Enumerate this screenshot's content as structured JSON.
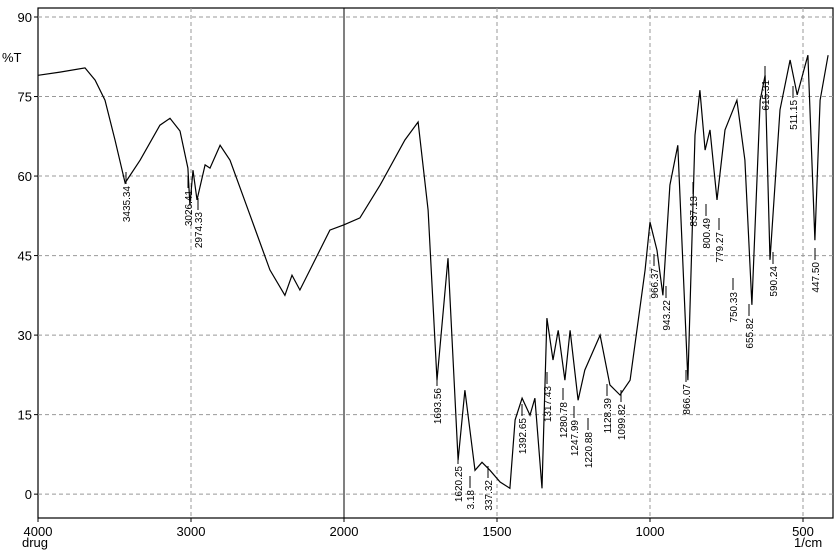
{
  "chart_data": {
    "type": "line",
    "y_label": "%T",
    "x_label": "1/cm",
    "sample": "drug",
    "xlim": [
      4000,
      400
    ],
    "ylim": [
      -4.5,
      91.7
    ],
    "xticks": [
      4000,
      3000,
      2000,
      1500,
      1000,
      500
    ],
    "yticks": [
      0,
      15,
      30,
      45,
      60,
      75,
      90
    ],
    "grid": true,
    "series": [
      {
        "color": "#000000",
        "x": [
          4000,
          3856,
          3693,
          3627,
          3562,
          3497,
          3431,
          3333,
          3203,
          3137,
          3072,
          3020,
          3007,
          2987,
          2961,
          2908,
          2876,
          2810,
          2745,
          2614,
          2484,
          2386,
          2340,
          2288,
          2222,
          2092,
          2000,
          1948,
          1882,
          1801,
          1758,
          1725,
          1696,
          1660,
          1627,
          1605,
          1572,
          1549,
          1523,
          1490,
          1458,
          1441,
          1418,
          1392,
          1376,
          1353,
          1337,
          1317,
          1300,
          1278,
          1261,
          1235,
          1213,
          1163,
          1131,
          1098,
          1065,
          1016,
          1000,
          977,
          958,
          935,
          909,
          876,
          853,
          837,
          820,
          804,
          781,
          755,
          716,
          690,
          667,
          640,
          624,
          608,
          575,
          542,
          519,
          484,
          461,
          444,
          418
        ],
        "values": [
          79,
          79.6,
          80.4,
          78.1,
          74.3,
          66.8,
          58.7,
          63,
          69.6,
          70.9,
          68.5,
          61.5,
          54.5,
          61.1,
          55.5,
          62.1,
          61.5,
          65.8,
          63,
          52.6,
          42.3,
          37.5,
          41.3,
          38.5,
          42.3,
          49.8,
          50.8,
          52.1,
          58.3,
          66.8,
          70.2,
          53.6,
          21.5,
          44.5,
          6.4,
          19.6,
          4.5,
          6,
          4.5,
          2.3,
          1.1,
          14,
          18.1,
          14.9,
          18.1,
          1.1,
          33.2,
          25.3,
          30.9,
          21.5,
          30.9,
          17.7,
          23.4,
          30,
          20.6,
          18.7,
          21.5,
          42.3,
          51.3,
          46,
          37.5,
          58.3,
          65.8,
          21.5,
          67.7,
          76.2,
          64.9,
          68.7,
          55.5,
          68.7,
          74.3,
          63,
          35.7,
          74.3,
          79,
          44.2,
          72.5,
          81.9,
          75.3,
          82.8,
          47.9,
          74.3,
          82.8
        ]
      }
    ],
    "annotations": [
      "3435.34",
      "3026.41",
      "2974.33",
      "1693.56",
      "1620.25",
      "3.18",
      "337.32",
      "1392.65",
      "1317.43",
      "1280.78",
      "1247.99",
      "1220.88",
      "1128.39",
      "1099.82",
      "966.37",
      "943.22",
      "866.07",
      "837.13",
      "800.49",
      "779.27",
      "750.33",
      "655.82",
      "615.31",
      "590.24",
      "511.15",
      "447.50"
    ]
  }
}
